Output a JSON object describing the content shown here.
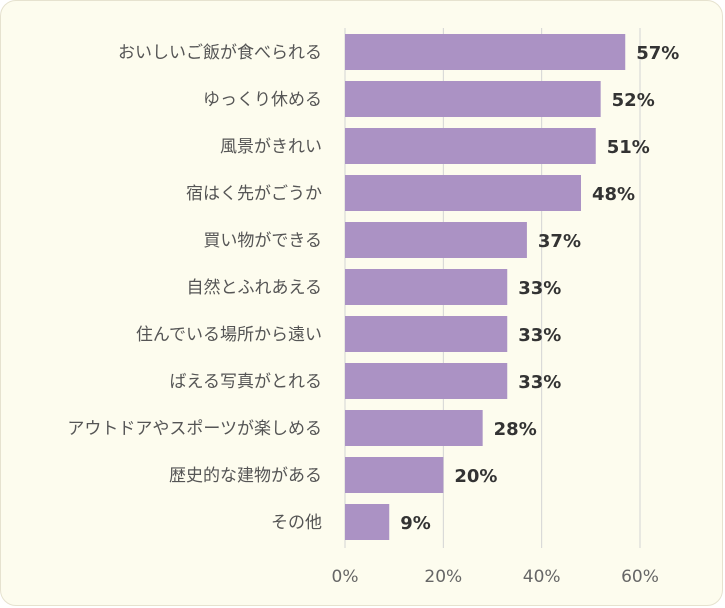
{
  "chart_data": {
    "type": "bar",
    "orientation": "horizontal",
    "categories": [
      "おいしいご飯が食べられる",
      "ゆっくり休める",
      "風景がきれい",
      "宿はく先がごうか",
      "買い物ができる",
      "自然とふれあえる",
      "住んでいる場所から遠い",
      "ばえる写真がとれる",
      "アウトドアやスポーツが楽しめる",
      "歴史的な建物がある",
      "その他"
    ],
    "values": [
      57,
      52,
      51,
      48,
      37,
      33,
      33,
      33,
      28,
      20,
      9
    ],
    "value_labels": [
      "57%",
      "52%",
      "51%",
      "48%",
      "37%",
      "33%",
      "33%",
      "33%",
      "28%",
      "20%",
      "9%"
    ],
    "xlim": [
      0,
      60
    ],
    "xticks": [
      0,
      20,
      40,
      60
    ],
    "xtick_labels": [
      "0%",
      "20%",
      "40%",
      "60%"
    ],
    "grid": "vertical",
    "bar_color": "#ab92c4",
    "background_color": "#fdfcee"
  }
}
